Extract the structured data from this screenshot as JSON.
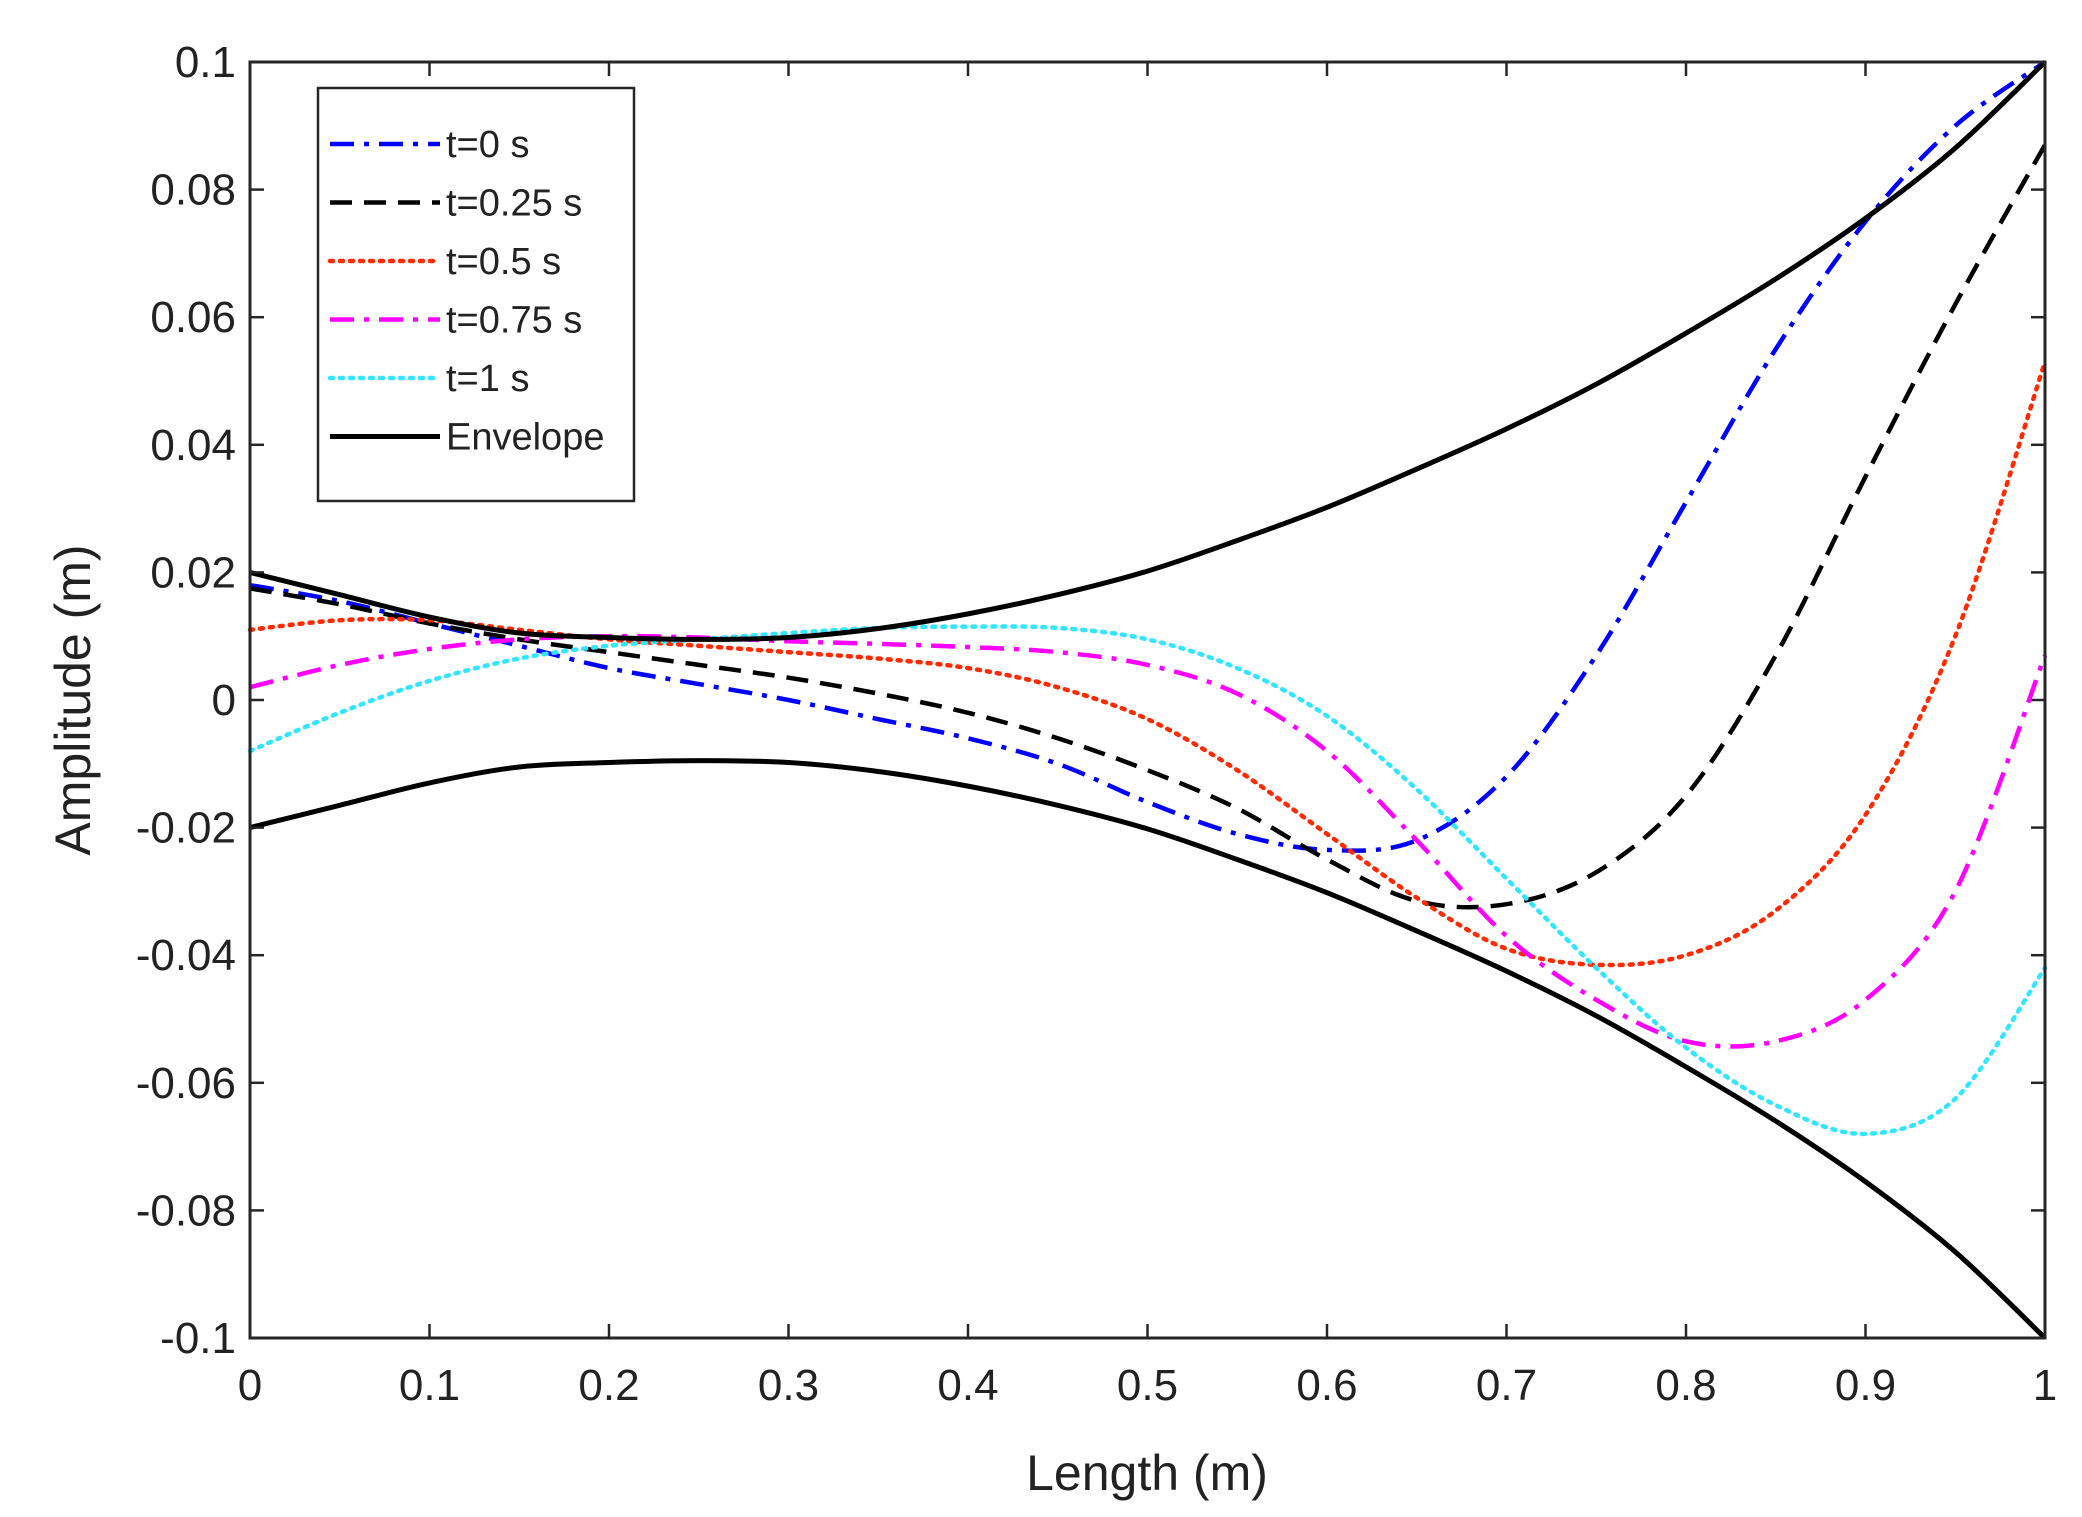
{
  "chart_data": {
    "type": "line",
    "title": "",
    "xlabel": "Length (m)",
    "ylabel": "Amplitude (m)",
    "xlim": [
      0,
      1
    ],
    "ylim": [
      -0.1,
      0.1
    ],
    "x_ticks": [
      0,
      0.1,
      0.2,
      0.3,
      0.4,
      0.5,
      0.6,
      0.7,
      0.8,
      0.9,
      1
    ],
    "x_tick_labels": [
      "0",
      "0.1",
      "0.2",
      "0.3",
      "0.4",
      "0.5",
      "0.6",
      "0.7",
      "0.8",
      "0.9",
      "1"
    ],
    "y_ticks": [
      -0.1,
      -0.08,
      -0.06,
      -0.04,
      -0.02,
      0,
      0.02,
      0.04,
      0.06,
      0.08,
      0.1
    ],
    "y_tick_labels": [
      "-0.1",
      "-0.08",
      "-0.06",
      "-0.04",
      "-0.02",
      "0",
      "0.02",
      "0.04",
      "0.06",
      "0.08",
      "0.1"
    ],
    "grid": false,
    "legend_position": "top-left",
    "x": [
      0,
      0.05,
      0.1,
      0.15,
      0.2,
      0.25,
      0.3,
      0.35,
      0.4,
      0.45,
      0.5,
      0.55,
      0.6,
      0.65,
      0.7,
      0.75,
      0.8,
      0.85,
      0.9,
      0.95,
      1
    ],
    "series": [
      {
        "name": "t=0 s",
        "color": "#0000ff",
        "style": "dash-dot",
        "values": [
          0.018,
          0.0155,
          0.012,
          0.0085,
          0.005,
          0.0025,
          0,
          -0.003,
          -0.006,
          -0.01,
          -0.016,
          -0.021,
          -0.0235,
          -0.022,
          -0.012,
          0.007,
          0.031,
          0.055,
          0.075,
          0.09,
          0.1
        ]
      },
      {
        "name": "t=0.25 s",
        "color": "#000000",
        "style": "dashed",
        "values": [
          0.0175,
          0.015,
          0.012,
          0.0095,
          0.0075,
          0.0055,
          0.0035,
          0.001,
          -0.002,
          -0.006,
          -0.011,
          -0.017,
          -0.025,
          -0.0315,
          -0.032,
          -0.027,
          -0.015,
          0.007,
          0.035,
          0.062,
          0.087
        ]
      },
      {
        "name": "t=0.5 s",
        "color": "#ff2a00",
        "style": "dotted",
        "values": [
          0.011,
          0.0125,
          0.0125,
          0.011,
          0.0095,
          0.0085,
          0.0075,
          0.0065,
          0.005,
          0.002,
          -0.003,
          -0.011,
          -0.021,
          -0.031,
          -0.039,
          -0.0415,
          -0.04,
          -0.033,
          -0.018,
          0.01,
          0.053
        ]
      },
      {
        "name": "t=0.75 s",
        "color": "#ff00ff",
        "style": "dash-dot",
        "values": [
          0.002,
          0.0055,
          0.008,
          0.0095,
          0.01,
          0.0098,
          0.0092,
          0.0088,
          0.0083,
          0.0075,
          0.0055,
          0.001,
          -0.008,
          -0.022,
          -0.037,
          -0.047,
          -0.0535,
          -0.0535,
          -0.047,
          -0.03,
          0.007
        ]
      },
      {
        "name": "t=1 s",
        "color": "#33e6ff",
        "style": "dotted",
        "values": [
          -0.008,
          -0.002,
          0.003,
          0.0065,
          0.0085,
          0.0095,
          0.0105,
          0.0113,
          0.0115,
          0.0113,
          0.0095,
          0.005,
          -0.0025,
          -0.014,
          -0.028,
          -0.042,
          -0.0545,
          -0.0635,
          -0.068,
          -0.0625,
          -0.042
        ]
      },
      {
        "name": "Envelope",
        "color": "#000000",
        "style": "solid",
        "values": [
          0.02,
          0.0165,
          0.013,
          0.0105,
          0.0098,
          0.0095,
          0.0098,
          0.0112,
          0.0135,
          0.0165,
          0.0202,
          0.025,
          0.0302,
          0.0362,
          0.0425,
          0.0495,
          0.0575,
          0.066,
          0.0755,
          0.0865,
          0.1
        ]
      },
      {
        "name": "Envelope (lower)",
        "color": "#000000",
        "style": "solid",
        "in_legend": false,
        "values": [
          -0.02,
          -0.0165,
          -0.013,
          -0.0105,
          -0.0098,
          -0.0095,
          -0.0098,
          -0.0112,
          -0.0135,
          -0.0165,
          -0.0202,
          -0.025,
          -0.0302,
          -0.0362,
          -0.0425,
          -0.0495,
          -0.0575,
          -0.066,
          -0.0755,
          -0.0865,
          -0.1
        ]
      }
    ]
  }
}
